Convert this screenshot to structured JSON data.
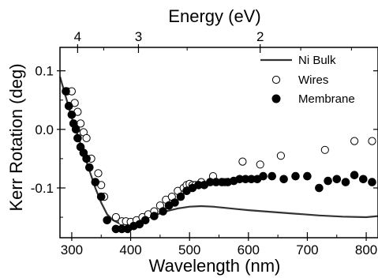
{
  "chart_data": {
    "type": "scatter",
    "xlabel": "Wavelength (nm)",
    "x2label": "Energy (eV)",
    "ylabel": "Kerr Rotation (deg)",
    "xlim": [
      280,
      820
    ],
    "ylim": [
      -0.185,
      0.14
    ],
    "x_ticks": [
      300,
      400,
      500,
      600,
      700,
      800
    ],
    "x_tick_labels": [
      "300",
      "400",
      "500",
      "600",
      "700",
      "800"
    ],
    "y_ticks": [
      -0.1,
      0.0,
      0.1
    ],
    "y_tick_labels": [
      "-0.1",
      "0.0",
      "0.1"
    ],
    "x2_ticks": [
      4,
      3,
      2
    ],
    "x2_tick_labels": [
      "4",
      "3",
      "2"
    ],
    "legend_position": "top-right",
    "colors": {
      "line": "#333333",
      "marker": "#000000",
      "open_fill": "#ffffff"
    },
    "series": [
      {
        "name": "Ni Bulk",
        "style": "line",
        "x": [
          280,
          290,
          300,
          310,
          320,
          330,
          340,
          350,
          360,
          370,
          380,
          390,
          400,
          420,
          440,
          460,
          480,
          500,
          520,
          540,
          560,
          580,
          600,
          640,
          680,
          720,
          760,
          800,
          820
        ],
        "y": [
          0.09,
          0.055,
          0.02,
          -0.01,
          -0.04,
          -0.07,
          -0.1,
          -0.125,
          -0.145,
          -0.155,
          -0.16,
          -0.16,
          -0.158,
          -0.153,
          -0.147,
          -0.14,
          -0.135,
          -0.132,
          -0.131,
          -0.132,
          -0.134,
          -0.136,
          -0.138,
          -0.141,
          -0.144,
          -0.147,
          -0.149,
          -0.15,
          -0.148
        ]
      },
      {
        "name": "Wires",
        "style": "open-circle",
        "x": [
          292,
          300,
          305,
          310,
          315,
          320,
          325,
          333,
          345,
          350,
          355,
          375,
          385,
          392,
          400,
          410,
          420,
          430,
          440,
          450,
          460,
          470,
          480,
          490,
          495,
          500,
          505,
          510,
          520,
          540,
          560,
          590,
          620,
          655,
          730,
          780,
          810
        ],
        "y": [
          0.065,
          0.065,
          0.045,
          0.03,
          0.01,
          -0.005,
          -0.015,
          -0.05,
          -0.075,
          -0.095,
          -0.115,
          -0.15,
          -0.157,
          -0.157,
          -0.158,
          -0.155,
          -0.15,
          -0.145,
          -0.14,
          -0.13,
          -0.12,
          -0.115,
          -0.105,
          -0.1,
          -0.095,
          -0.093,
          -0.095,
          -0.095,
          -0.09,
          -0.08,
          -0.09,
          -0.055,
          -0.06,
          -0.045,
          -0.035,
          -0.02,
          -0.02
        ]
      },
      {
        "name": "Membrane",
        "style": "filled-circle",
        "x": [
          290,
          295,
          300,
          303,
          307,
          310,
          315,
          320,
          325,
          330,
          340,
          350,
          360,
          375,
          385,
          395,
          405,
          415,
          425,
          440,
          455,
          465,
          475,
          485,
          495,
          505,
          515,
          525,
          535,
          545,
          555,
          565,
          575,
          585,
          595,
          605,
          615,
          625,
          640,
          660,
          680,
          700,
          720,
          735,
          750,
          765,
          780,
          795,
          810
        ],
        "y": [
          0.065,
          0.04,
          0.025,
          0.01,
          0.0,
          -0.015,
          -0.03,
          -0.04,
          -0.05,
          -0.065,
          -0.09,
          -0.115,
          -0.155,
          -0.17,
          -0.17,
          -0.17,
          -0.165,
          -0.162,
          -0.155,
          -0.148,
          -0.14,
          -0.13,
          -0.125,
          -0.115,
          -0.105,
          -0.1,
          -0.095,
          -0.095,
          -0.09,
          -0.09,
          -0.09,
          -0.09,
          -0.088,
          -0.085,
          -0.085,
          -0.085,
          -0.085,
          -0.08,
          -0.08,
          -0.085,
          -0.08,
          -0.08,
          -0.1,
          -0.088,
          -0.085,
          -0.09,
          -0.078,
          -0.085,
          -0.09
        ]
      }
    ]
  }
}
